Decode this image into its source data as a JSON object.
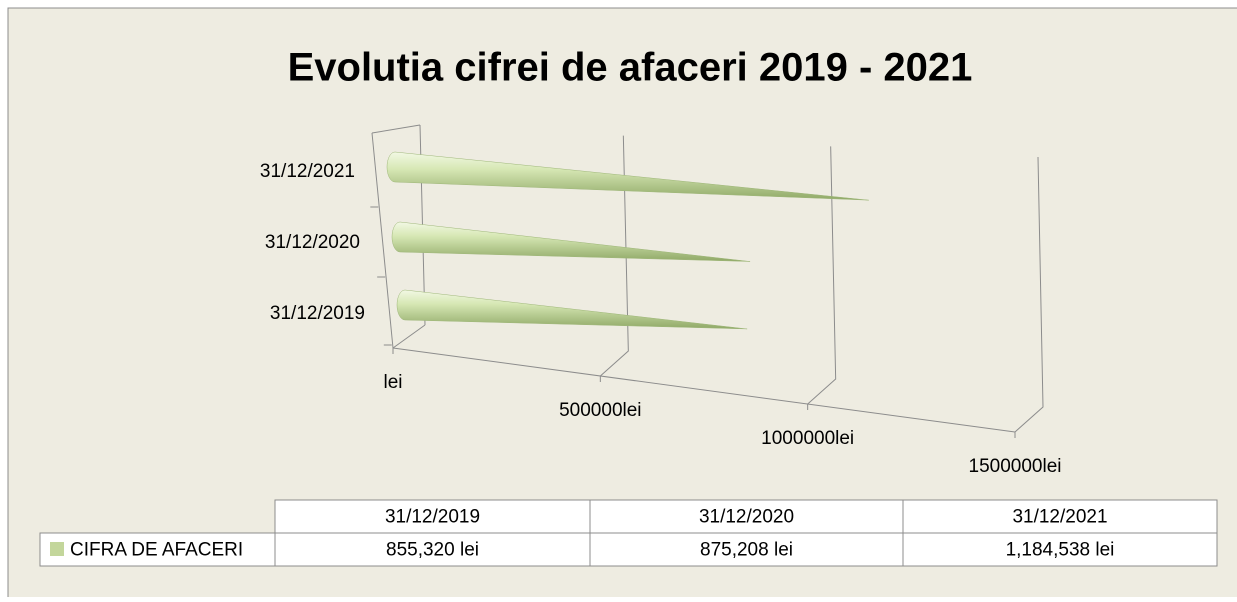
{
  "chart_data": {
    "type": "bar",
    "title": "Evolutia cifrei de afaceri 2019 - 2021",
    "categories": [
      "31/12/2019",
      "31/12/2020",
      "31/12/2021"
    ],
    "series": [
      {
        "name": "CIFRA DE AFACERI",
        "color": "#c3d69b",
        "values": [
          855320,
          875208,
          1184538
        ],
        "value_labels": [
          "855,320 lei",
          "875,208 lei",
          "1,184,538 lei"
        ]
      }
    ],
    "xlim": [
      0,
      1500000
    ],
    "xticks": [
      {
        "value": 0,
        "label": "lei"
      },
      {
        "value": 500000,
        "label": "500000lei"
      },
      {
        "value": 1000000,
        "label": "1000000lei"
      },
      {
        "value": 1500000,
        "label": "1500000lei"
      }
    ],
    "grid": true
  }
}
